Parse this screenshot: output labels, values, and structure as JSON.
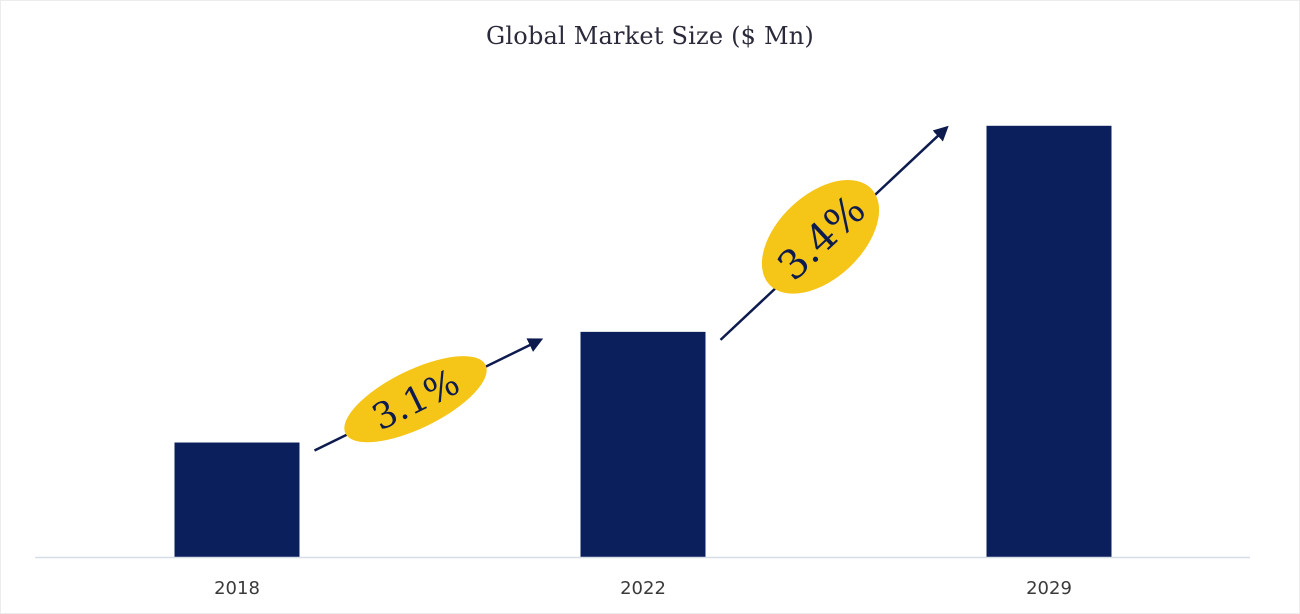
{
  "chart_data": {
    "type": "bar",
    "title": "Global Market Size ($ Mn)",
    "categories": [
      "2018",
      "2022",
      "2029"
    ],
    "values": [
      30,
      59,
      113
    ],
    "ylim": [
      0,
      125
    ],
    "xlabel": "",
    "ylabel": "",
    "grid": false,
    "bar_color": "#0b1f5c",
    "annotations": [
      {
        "text": "3.1%",
        "from": "2018",
        "to": "2022",
        "color": "#f5c518"
      },
      {
        "text": "3.4%",
        "from": "2022",
        "to": "2029",
        "color": "#f5c518"
      }
    ]
  }
}
